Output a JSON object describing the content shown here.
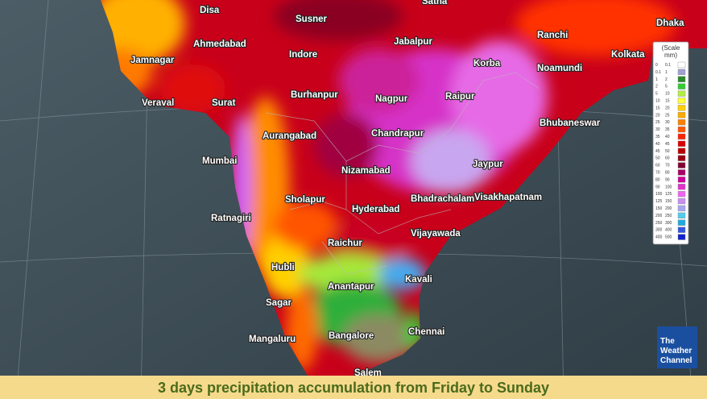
{
  "cities": [
    "Disa",
    "Susner",
    "Satna",
    "Jabalpur",
    "Ahmedabad",
    "Indore",
    "Ranchi",
    "Dhaka",
    "Jamnagar",
    "Korba",
    "Noamundi",
    "Kolkata",
    "Veraval",
    "Surat",
    "Burhanpur",
    "Nagpur",
    "Raipur",
    "Bhubaneswar",
    "Aurangabad",
    "Chandrapur",
    "Mumbai",
    "Jaypur",
    "Nizamabad",
    "Sholapur",
    "Bhadrachalam",
    "Visakhapatnam",
    "Hyderabad",
    "Ratnagiri",
    "Vijayawada",
    "Raichur",
    "Hubli",
    "Kavali",
    "Anantapur",
    "Sagar",
    "Bangalore",
    "Chennai",
    "Mangaluru",
    "Salem"
  ],
  "legend": {
    "title": [
      "(Scale",
      "mm)"
    ],
    "rows": [
      {
        "from": 0,
        "to": 0.1,
        "color": "#ffffff"
      },
      {
        "from": 0.1,
        "to": 1,
        "color": "#a0a0d0"
      },
      {
        "from": 1,
        "to": 2,
        "color": "#2a8c2a"
      },
      {
        "from": 2,
        "to": 5,
        "color": "#33cc33"
      },
      {
        "from": 5,
        "to": 10,
        "color": "#b4ee44"
      },
      {
        "from": 10,
        "to": 15,
        "color": "#ffff33"
      },
      {
        "from": 15,
        "to": 20,
        "color": "#ffd000"
      },
      {
        "from": 20,
        "to": 25,
        "color": "#ffaa00"
      },
      {
        "from": 25,
        "to": 30,
        "color": "#ff8000"
      },
      {
        "from": 30,
        "to": 35,
        "color": "#ff5500"
      },
      {
        "from": 35,
        "to": 40,
        "color": "#ff2200"
      },
      {
        "from": 40,
        "to": 45,
        "color": "#dd0000"
      },
      {
        "from": 45,
        "to": 50,
        "color": "#bb0000"
      },
      {
        "from": 50,
        "to": 60,
        "color": "#990010"
      },
      {
        "from": 60,
        "to": 70,
        "color": "#800030"
      },
      {
        "from": 70,
        "to": 80,
        "color": "#aa0066"
      },
      {
        "from": 80,
        "to": 90,
        "color": "#cc0099"
      },
      {
        "from": 90,
        "to": 100,
        "color": "#e033cc"
      },
      {
        "from": 100,
        "to": 125,
        "color": "#ee66ee"
      },
      {
        "from": 125,
        "to": 150,
        "color": "#c88ef0"
      },
      {
        "from": 150,
        "to": 200,
        "color": "#a6a6f0"
      },
      {
        "from": 200,
        "to": 250,
        "color": "#55ccee"
      },
      {
        "from": 250,
        "to": 300,
        "color": "#22aadd"
      },
      {
        "from": 300,
        "to": 400,
        "color": "#3355dd"
      },
      {
        "from": 400,
        "to": 500,
        "color": "#1122cc"
      }
    ]
  },
  "logo": [
    "The",
    "Weather",
    "Channel"
  ],
  "caption": "3 days precipitation accumulation from Friday to Sunday"
}
